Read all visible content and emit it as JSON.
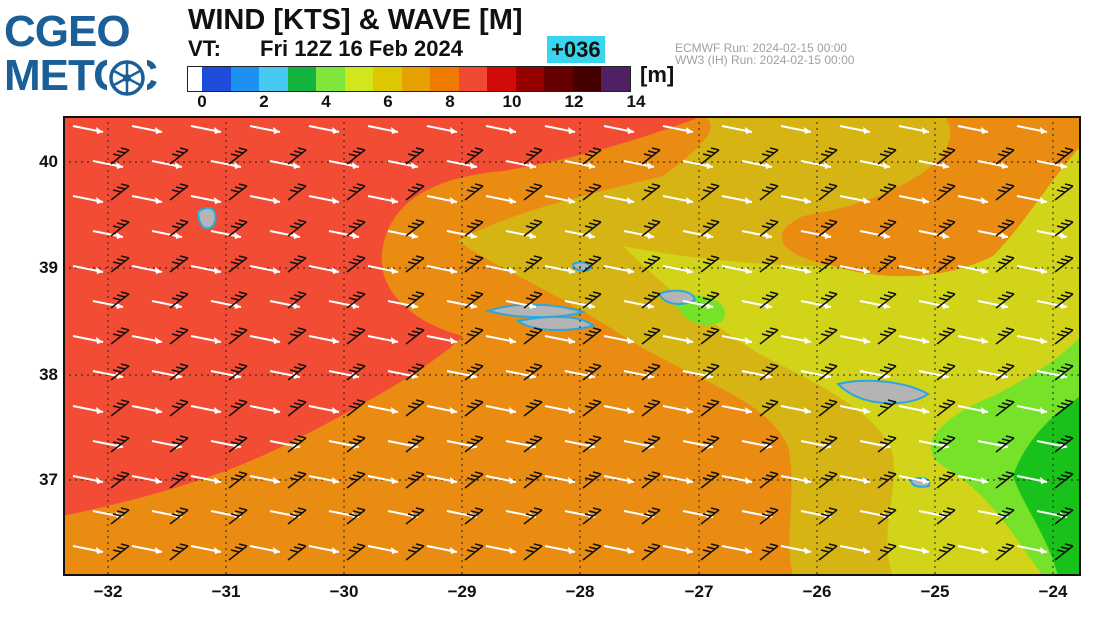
{
  "logo": {
    "line1": "CGEO",
    "line2": "METOC"
  },
  "header": {
    "title": "WIND [KTS] & WAVE [M]",
    "vt_label": "VT:",
    "valid_time": "Fri 12Z 16 Feb 2024",
    "forecast_hour": "+036",
    "run_ecmwf": "ECMWF    Run: 2024-02-15 00:00",
    "run_ww3": "WW3 (IH) Run: 2024-02-15 00:00"
  },
  "colorbar": {
    "unit": "[m]",
    "tick_labels": [
      "0",
      "2",
      "4",
      "6",
      "8",
      "10",
      "12",
      "14"
    ],
    "colors": [
      "#ffffff",
      "#1e4cdc",
      "#1e90f0",
      "#46c8f0",
      "#11b43c",
      "#7ee63c",
      "#d2e61e",
      "#dcc800",
      "#e6a000",
      "#ee7a00",
      "#f24a32",
      "#d20a0a",
      "#960000",
      "#640000",
      "#420000",
      "#502064"
    ]
  },
  "map": {
    "y_ticks": [
      "40",
      "39",
      "38",
      "37"
    ],
    "x_ticks": [
      "−32",
      "−31",
      "−30",
      "−29",
      "−28",
      "−27",
      "−26",
      "−25",
      "−24"
    ],
    "colors": {
      "red": "#f24c34",
      "orange": "#ea8c12",
      "darkyellow": "#d6b414",
      "yellow": "#d2d41a",
      "lightgreen": "#76e22a",
      "green": "#18c21a",
      "gray": "#b4b4b4"
    }
  }
}
